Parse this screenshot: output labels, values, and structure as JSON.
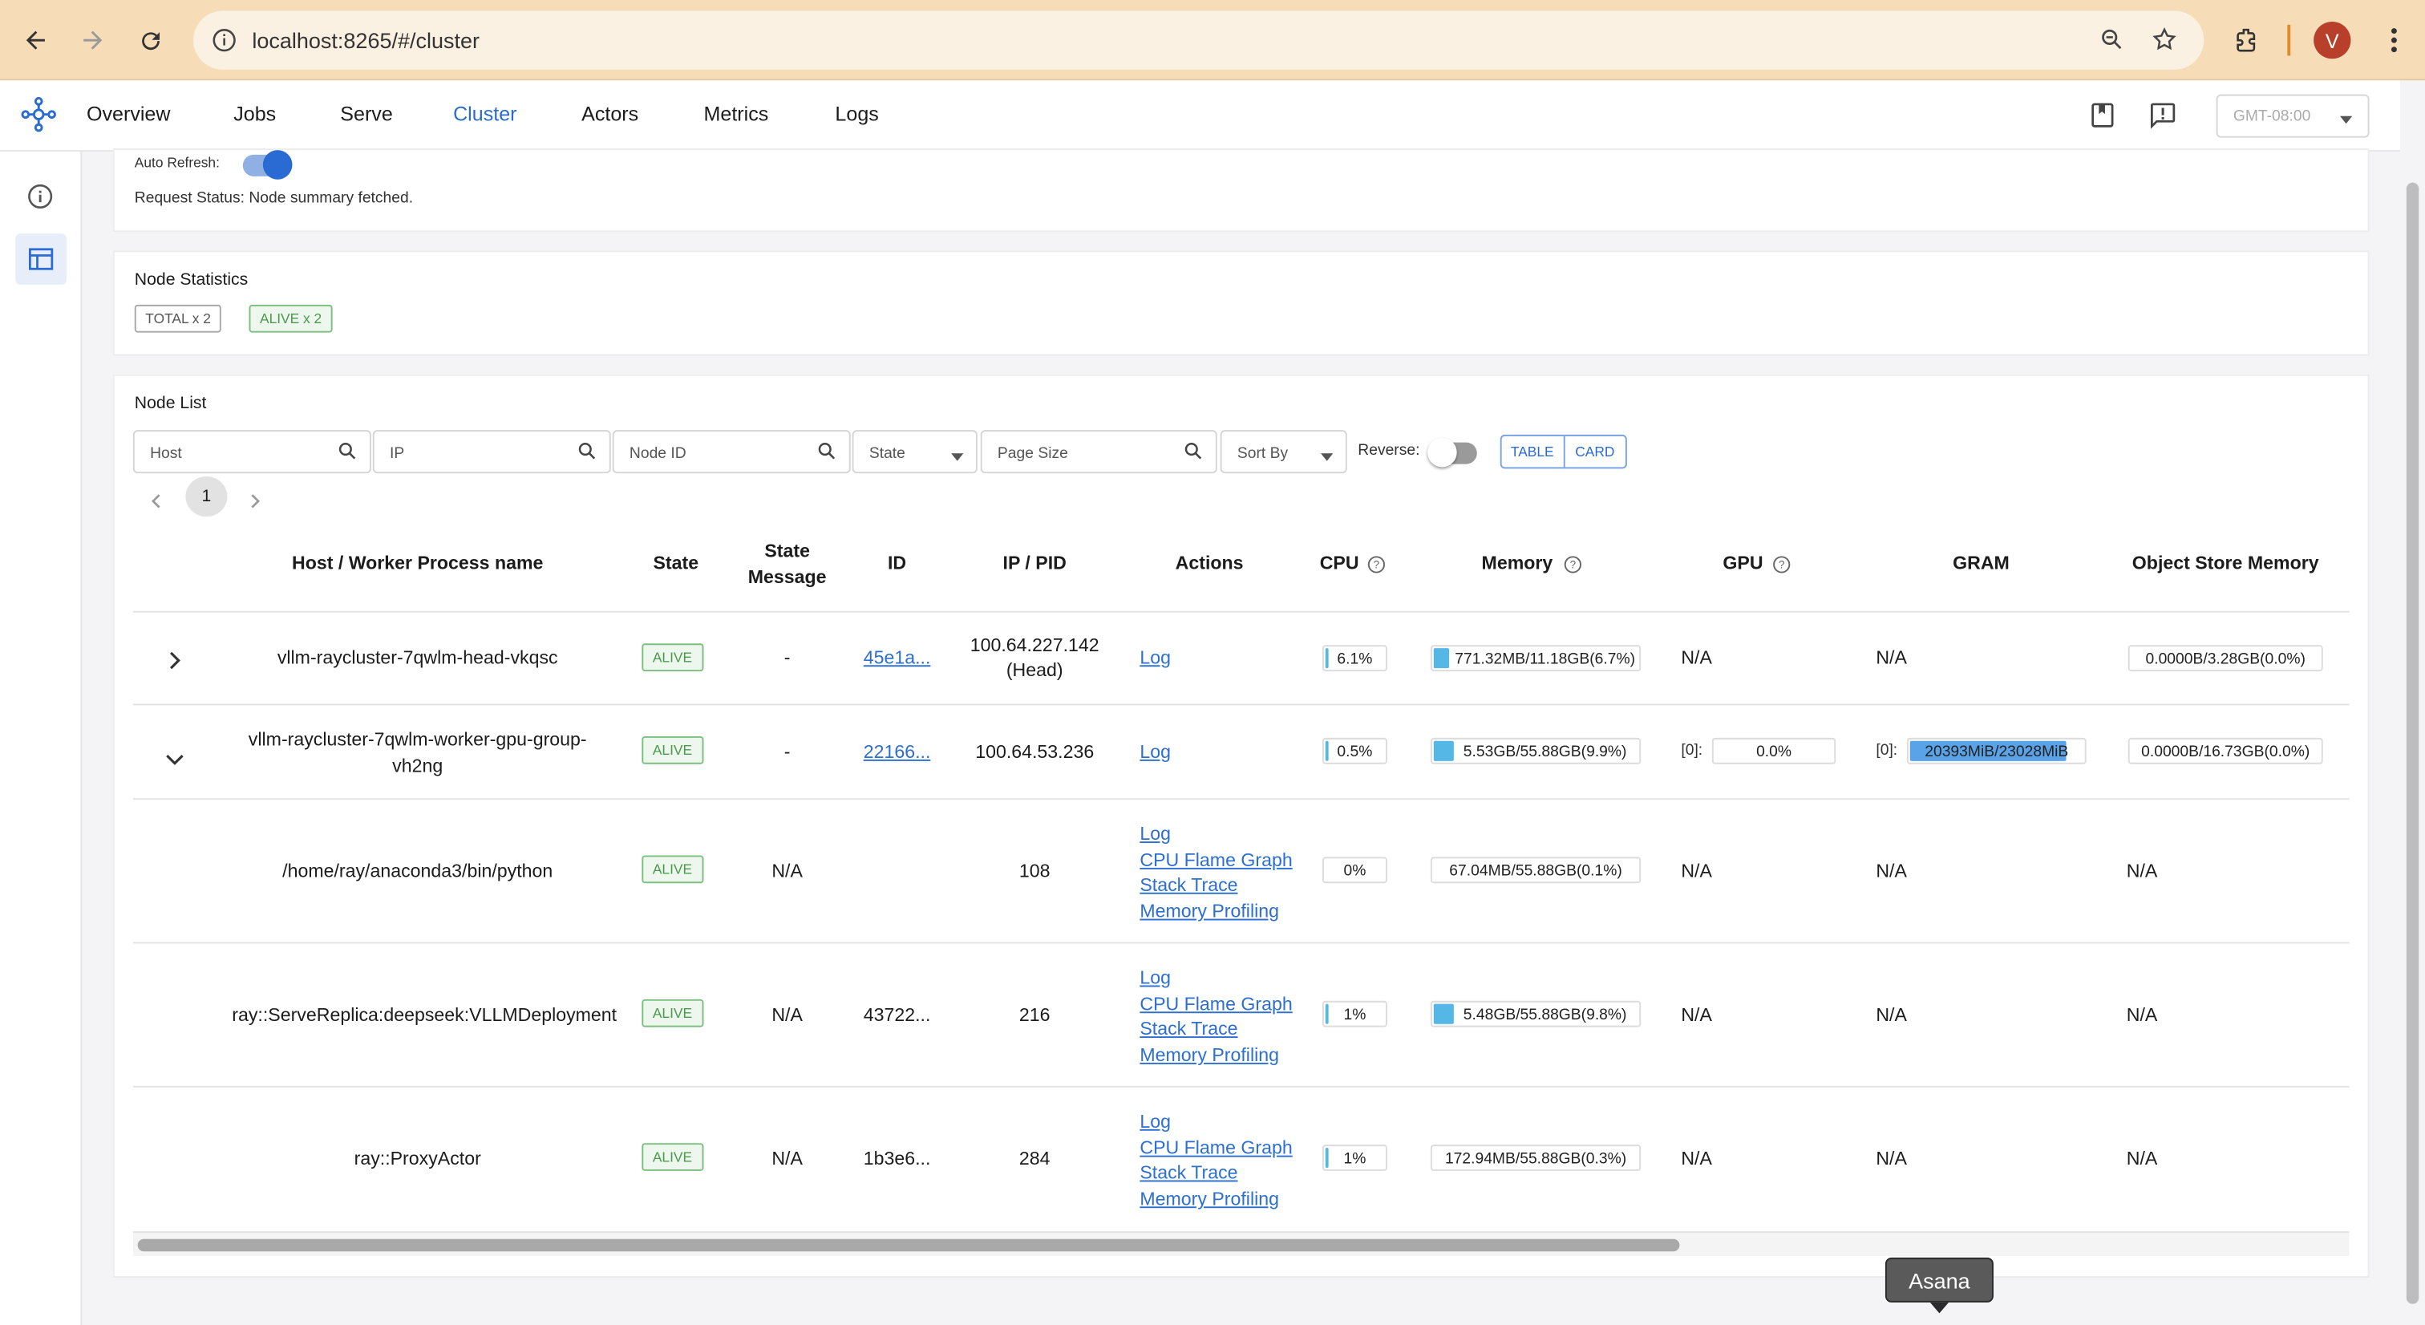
{
  "browser": {
    "url": "localhost:8265/#/cluster",
    "avatar": "V"
  },
  "nav": {
    "tabs": [
      "Overview",
      "Jobs",
      "Serve",
      "Cluster",
      "Actors",
      "Metrics",
      "Logs"
    ],
    "active": "Cluster",
    "timezone": "GMT-08:00"
  },
  "status": {
    "auto_refresh_label": "Auto Refresh:",
    "request_status": "Request Status: Node summary fetched."
  },
  "stats": {
    "title": "Node Statistics",
    "total": "TOTAL x 2",
    "alive": "ALIVE x 2"
  },
  "node_list": {
    "title": "Node List",
    "filters": {
      "host": "Host",
      "ip": "IP",
      "node_id": "Node ID",
      "state": "State",
      "page_size": "Page Size",
      "sort_by": "Sort By",
      "reverse": "Reverse:"
    },
    "view_toggle": {
      "table": "TABLE",
      "card": "CARD"
    },
    "page": "1",
    "columns": [
      "Host / Worker Process name",
      "State",
      "State Message",
      "ID",
      "IP / PID",
      "Actions",
      "CPU",
      "Memory",
      "GPU",
      "GRAM",
      "Object Store Memory"
    ],
    "rows": [
      {
        "name": "vllm-raycluster-7qwlm-head-vkqsc",
        "state": "ALIVE",
        "state_msg": "-",
        "id": "45e1a...",
        "ip": "100.64.227.142",
        "ip_sub": "(Head)",
        "actions": [
          "Log"
        ],
        "cpu": "6.1%",
        "cpu_frac": 0.061,
        "mem": "771.32MB/11.18GB(6.7%)",
        "mem_frac": 0.067,
        "gpu": "N/A",
        "gram": "N/A",
        "obj": "0.0000B/3.28GB(0.0%)"
      },
      {
        "name": "vllm-raycluster-7qwlm-worker-gpu-group-vh2ng",
        "state": "ALIVE",
        "state_msg": "-",
        "id": "22166...",
        "ip": "100.64.53.236",
        "actions": [
          "Log"
        ],
        "cpu": "0.5%",
        "cpu_frac": 0.005,
        "mem": "5.53GB/55.88GB(9.9%)",
        "mem_frac": 0.099,
        "gpu_prefix": "[0]:",
        "gpu": "0.0%",
        "gram_prefix": "[0]:",
        "gram": "20393MiB/23028MiB",
        "gram_frac": 0.886,
        "obj": "0.0000B/16.73GB(0.0%)"
      },
      {
        "name": "/home/ray/anaconda3/bin/python",
        "state": "ALIVE",
        "state_msg": "N/A",
        "id": "",
        "ip": "108",
        "actions": [
          "Log",
          "CPU Flame Graph",
          "Stack Trace",
          "Memory Profiling"
        ],
        "cpu": "0%",
        "cpu_frac": 0,
        "mem": "67.04MB/55.88GB(0.1%)",
        "mem_frac": 0.001,
        "gpu": "N/A",
        "gram": "N/A",
        "obj": "N/A"
      },
      {
        "name": "ray::ServeReplica:deepseek:VLLMDeployment",
        "state": "ALIVE",
        "state_msg": "N/A",
        "id": "43722...",
        "ip": "216",
        "actions": [
          "Log",
          "CPU Flame Graph",
          "Stack Trace",
          "Memory Profiling"
        ],
        "cpu": "1%",
        "cpu_frac": 0.01,
        "mem": "5.48GB/55.88GB(9.8%)",
        "mem_frac": 0.098,
        "gpu": "N/A",
        "gram": "N/A",
        "obj": "N/A"
      },
      {
        "name": "ray::ProxyActor",
        "state": "ALIVE",
        "state_msg": "N/A",
        "id": "1b3e6...",
        "ip": "284",
        "actions": [
          "Log",
          "CPU Flame Graph",
          "Stack Trace",
          "Memory Profiling"
        ],
        "cpu": "1%",
        "cpu_frac": 0.01,
        "mem": "172.94MB/55.88GB(0.3%)",
        "mem_frac": 0.003,
        "gpu": "N/A",
        "gram": "N/A",
        "obj": "N/A"
      }
    ]
  },
  "tooltip": "Asana"
}
